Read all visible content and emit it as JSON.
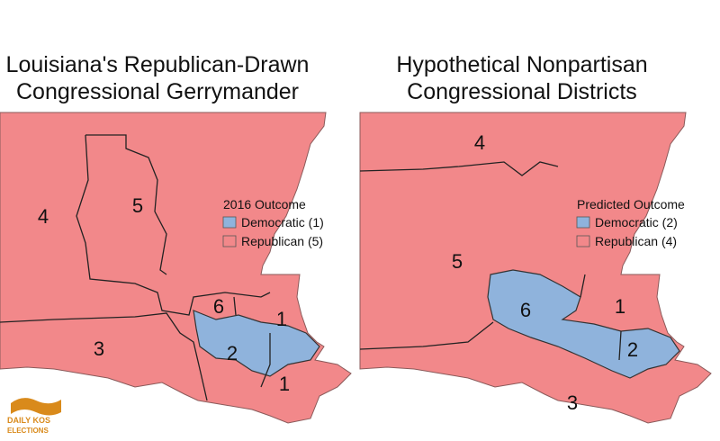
{
  "maps": [
    {
      "title": [
        "Louisiana's Republican-Drawn",
        "Congressional Gerrymander"
      ],
      "legend": {
        "title": "2016 Outcome",
        "items": [
          {
            "label": "Democratic (1)",
            "color": "#8fb3dc"
          },
          {
            "label": "Republican (5)",
            "color": "#f2888a"
          }
        ]
      },
      "districts": [
        "4",
        "5",
        "6",
        "1",
        "3",
        "2",
        "1"
      ]
    },
    {
      "title": [
        "Hypothetical Nonpartisan",
        "Congressional Districts"
      ],
      "legend": {
        "title": "Predicted Outcome",
        "items": [
          {
            "label": "Democratic (2)",
            "color": "#8fb3dc"
          },
          {
            "label": "Republican (4)",
            "color": "#f2888a"
          }
        ]
      },
      "districts": [
        "4",
        "5",
        "6",
        "1",
        "2",
        "3"
      ]
    }
  ],
  "logo": {
    "line1": "DAILY KOS",
    "line2": "ELECTIONS"
  }
}
